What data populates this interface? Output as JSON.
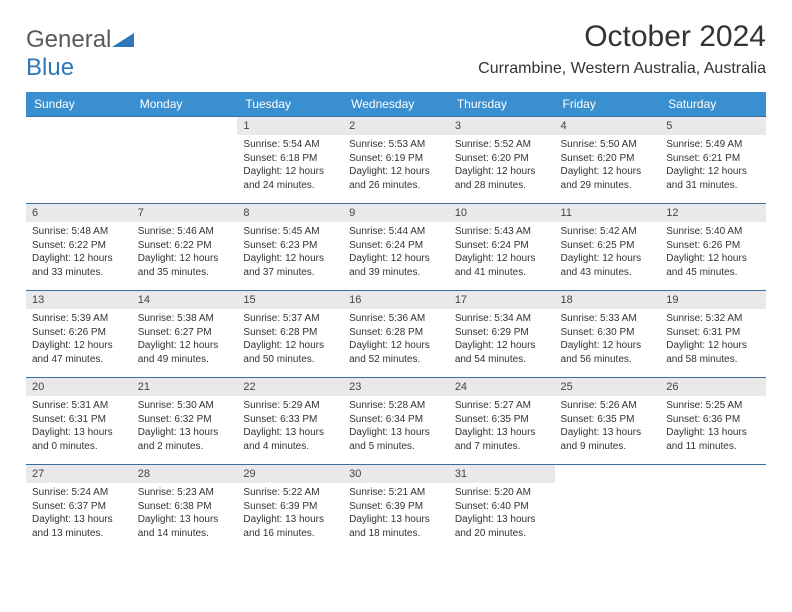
{
  "logo": {
    "word1": "General",
    "word2": "Blue",
    "word1_color": "#5a5a5a",
    "word2_color": "#2f77b6"
  },
  "title": "October 2024",
  "location": "Currambine, Western Australia, Australia",
  "colors": {
    "header_bg": "#3a8fd0",
    "header_fg": "#ffffff",
    "daynum_bg": "#e9e9e9",
    "row_border": "#3a6fa0"
  },
  "weekdays": [
    "Sunday",
    "Monday",
    "Tuesday",
    "Wednesday",
    "Thursday",
    "Friday",
    "Saturday"
  ],
  "grid_blank_leading": 2,
  "days": [
    {
      "n": 1,
      "sunrise": "5:54 AM",
      "sunset": "6:18 PM",
      "dl": "12 hours and 24 minutes."
    },
    {
      "n": 2,
      "sunrise": "5:53 AM",
      "sunset": "6:19 PM",
      "dl": "12 hours and 26 minutes."
    },
    {
      "n": 3,
      "sunrise": "5:52 AM",
      "sunset": "6:20 PM",
      "dl": "12 hours and 28 minutes."
    },
    {
      "n": 4,
      "sunrise": "5:50 AM",
      "sunset": "6:20 PM",
      "dl": "12 hours and 29 minutes."
    },
    {
      "n": 5,
      "sunrise": "5:49 AM",
      "sunset": "6:21 PM",
      "dl": "12 hours and 31 minutes."
    },
    {
      "n": 6,
      "sunrise": "5:48 AM",
      "sunset": "6:22 PM",
      "dl": "12 hours and 33 minutes."
    },
    {
      "n": 7,
      "sunrise": "5:46 AM",
      "sunset": "6:22 PM",
      "dl": "12 hours and 35 minutes."
    },
    {
      "n": 8,
      "sunrise": "5:45 AM",
      "sunset": "6:23 PM",
      "dl": "12 hours and 37 minutes."
    },
    {
      "n": 9,
      "sunrise": "5:44 AM",
      "sunset": "6:24 PM",
      "dl": "12 hours and 39 minutes."
    },
    {
      "n": 10,
      "sunrise": "5:43 AM",
      "sunset": "6:24 PM",
      "dl": "12 hours and 41 minutes."
    },
    {
      "n": 11,
      "sunrise": "5:42 AM",
      "sunset": "6:25 PM",
      "dl": "12 hours and 43 minutes."
    },
    {
      "n": 12,
      "sunrise": "5:40 AM",
      "sunset": "6:26 PM",
      "dl": "12 hours and 45 minutes."
    },
    {
      "n": 13,
      "sunrise": "5:39 AM",
      "sunset": "6:26 PM",
      "dl": "12 hours and 47 minutes."
    },
    {
      "n": 14,
      "sunrise": "5:38 AM",
      "sunset": "6:27 PM",
      "dl": "12 hours and 49 minutes."
    },
    {
      "n": 15,
      "sunrise": "5:37 AM",
      "sunset": "6:28 PM",
      "dl": "12 hours and 50 minutes."
    },
    {
      "n": 16,
      "sunrise": "5:36 AM",
      "sunset": "6:28 PM",
      "dl": "12 hours and 52 minutes."
    },
    {
      "n": 17,
      "sunrise": "5:34 AM",
      "sunset": "6:29 PM",
      "dl": "12 hours and 54 minutes."
    },
    {
      "n": 18,
      "sunrise": "5:33 AM",
      "sunset": "6:30 PM",
      "dl": "12 hours and 56 minutes."
    },
    {
      "n": 19,
      "sunrise": "5:32 AM",
      "sunset": "6:31 PM",
      "dl": "12 hours and 58 minutes."
    },
    {
      "n": 20,
      "sunrise": "5:31 AM",
      "sunset": "6:31 PM",
      "dl": "13 hours and 0 minutes."
    },
    {
      "n": 21,
      "sunrise": "5:30 AM",
      "sunset": "6:32 PM",
      "dl": "13 hours and 2 minutes."
    },
    {
      "n": 22,
      "sunrise": "5:29 AM",
      "sunset": "6:33 PM",
      "dl": "13 hours and 4 minutes."
    },
    {
      "n": 23,
      "sunrise": "5:28 AM",
      "sunset": "6:34 PM",
      "dl": "13 hours and 5 minutes."
    },
    {
      "n": 24,
      "sunrise": "5:27 AM",
      "sunset": "6:35 PM",
      "dl": "13 hours and 7 minutes."
    },
    {
      "n": 25,
      "sunrise": "5:26 AM",
      "sunset": "6:35 PM",
      "dl": "13 hours and 9 minutes."
    },
    {
      "n": 26,
      "sunrise": "5:25 AM",
      "sunset": "6:36 PM",
      "dl": "13 hours and 11 minutes."
    },
    {
      "n": 27,
      "sunrise": "5:24 AM",
      "sunset": "6:37 PM",
      "dl": "13 hours and 13 minutes."
    },
    {
      "n": 28,
      "sunrise": "5:23 AM",
      "sunset": "6:38 PM",
      "dl": "13 hours and 14 minutes."
    },
    {
      "n": 29,
      "sunrise": "5:22 AM",
      "sunset": "6:39 PM",
      "dl": "13 hours and 16 minutes."
    },
    {
      "n": 30,
      "sunrise": "5:21 AM",
      "sunset": "6:39 PM",
      "dl": "13 hours and 18 minutes."
    },
    {
      "n": 31,
      "sunrise": "5:20 AM",
      "sunset": "6:40 PM",
      "dl": "13 hours and 20 minutes."
    }
  ],
  "labels": {
    "sunrise": "Sunrise:",
    "sunset": "Sunset:",
    "daylight": "Daylight:"
  }
}
